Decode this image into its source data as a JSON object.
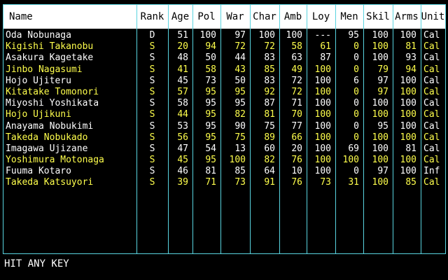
{
  "colors": {
    "normal": "#ffffff",
    "highlight": "#ffff4c",
    "border": "#59d4e0",
    "header_bg": "#ffffff"
  },
  "headers": [
    "Name",
    "Rank",
    "Age",
    "Pol",
    "War",
    "Char",
    "Amb",
    "Loy",
    "Men",
    "Skil",
    "Arms",
    "Unit"
  ],
  "rows": [
    {
      "cells": [
        "Oda Nobunaga",
        "D",
        "51",
        "100",
        "97",
        "100",
        "100",
        "---",
        "95",
        "100",
        "100",
        "Cal"
      ],
      "highlight": false
    },
    {
      "cells": [
        "Kigishi Takanobu",
        "S",
        "20",
        "94",
        "72",
        "72",
        "58",
        "61",
        "0",
        "100",
        "81",
        "Cal"
      ],
      "highlight": true
    },
    {
      "cells": [
        "Asakura Kagetake",
        "S",
        "48",
        "50",
        "44",
        "83",
        "63",
        "87",
        "0",
        "100",
        "93",
        "Cal"
      ],
      "highlight": false
    },
    {
      "cells": [
        "Jinbo Nagasumi",
        "S",
        "41",
        "58",
        "43",
        "85",
        "49",
        "100",
        "0",
        "79",
        "94",
        "Cal"
      ],
      "highlight": true
    },
    {
      "cells": [
        "Hojo Ujiteru",
        "S",
        "45",
        "73",
        "50",
        "83",
        "72",
        "100",
        "6",
        "97",
        "100",
        "Cal"
      ],
      "highlight": false
    },
    {
      "cells": [
        "Kitatake Tomonori",
        "S",
        "57",
        "95",
        "95",
        "92",
        "72",
        "100",
        "0",
        "97",
        "100",
        "Cal"
      ],
      "highlight": true
    },
    {
      "cells": [
        "Miyoshi Yoshikata",
        "S",
        "58",
        "95",
        "95",
        "87",
        "71",
        "100",
        "0",
        "100",
        "100",
        "Cal"
      ],
      "highlight": false
    },
    {
      "cells": [
        "Hojo Ujikuni",
        "S",
        "44",
        "95",
        "82",
        "81",
        "70",
        "100",
        "0",
        "100",
        "100",
        "Cal"
      ],
      "highlight": true
    },
    {
      "cells": [
        "Anayama Nobukimi",
        "S",
        "53",
        "95",
        "90",
        "75",
        "77",
        "100",
        "0",
        "95",
        "100",
        "Cal"
      ],
      "highlight": false
    },
    {
      "cells": [
        "Takeda Nobukado",
        "S",
        "56",
        "95",
        "75",
        "89",
        "66",
        "100",
        "0",
        "100",
        "100",
        "Cal"
      ],
      "highlight": true
    },
    {
      "cells": [
        "Imagawa Ujizane",
        "S",
        "47",
        "54",
        "13",
        "60",
        "20",
        "100",
        "69",
        "100",
        "81",
        "Cal"
      ],
      "highlight": false
    },
    {
      "cells": [
        "Yoshimura Motonaga",
        "S",
        "45",
        "95",
        "100",
        "82",
        "76",
        "100",
        "100",
        "100",
        "100",
        "Cal"
      ],
      "highlight": true
    },
    {
      "cells": [
        "Fuuma Kotaro",
        "S",
        "46",
        "81",
        "85",
        "64",
        "10",
        "100",
        "0",
        "97",
        "100",
        "Inf"
      ],
      "highlight": false
    },
    {
      "cells": [
        "Takeda Katsuyori",
        "S",
        "39",
        "71",
        "73",
        "91",
        "76",
        "73",
        "31",
        "100",
        "85",
        "Cal"
      ],
      "highlight": true
    }
  ],
  "prompt": "HIT ANY KEY"
}
